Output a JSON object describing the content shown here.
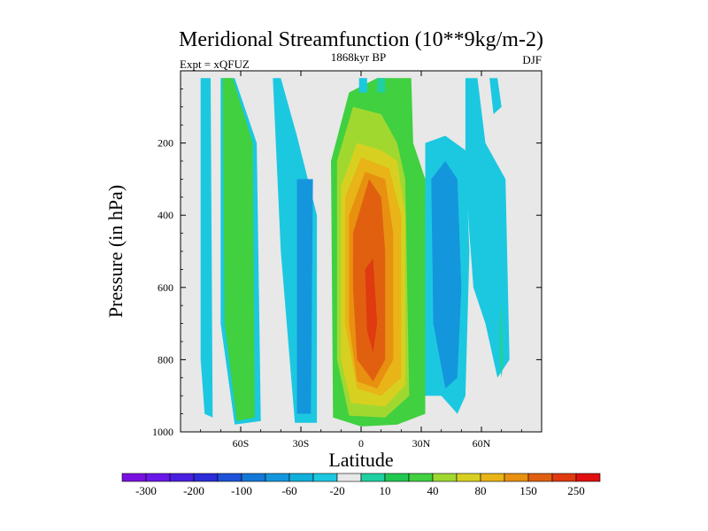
{
  "chart_data": {
    "type": "heatmap",
    "title": "Meridional Streamfunction (10**9kg/m-2)",
    "subtitle_left": "Expt = xQFUZ",
    "subtitle_center": "1868kyr BP",
    "subtitle_right": "DJF",
    "xlabel": "Latitude",
    "ylabel": "Pressure (in hPa)",
    "xlim": [
      -90,
      90
    ],
    "ylim": [
      1000,
      0
    ],
    "x_ticks": [
      {
        "value": -60,
        "label": "60S"
      },
      {
        "value": -30,
        "label": "30S"
      },
      {
        "value": 0,
        "label": "0"
      },
      {
        "value": 30,
        "label": "30N"
      },
      {
        "value": 60,
        "label": "60N"
      }
    ],
    "y_ticks": [
      {
        "value": 200,
        "label": "200"
      },
      {
        "value": 400,
        "label": "400"
      },
      {
        "value": 600,
        "label": "600"
      },
      {
        "value": 800,
        "label": "800"
      },
      {
        "value": 1000,
        "label": "1000"
      }
    ],
    "background_color": "#e8e8e8",
    "colorbar": {
      "colors": [
        "#7a10e0",
        "#6a18e8",
        "#4a20e0",
        "#2c2cd8",
        "#1e52d8",
        "#1478d8",
        "#1496dc",
        "#10b0dc",
        "#1cc8e0",
        "#e8e8e8",
        "#20d0a0",
        "#20c850",
        "#40d040",
        "#a0d830",
        "#d8d020",
        "#e8b418",
        "#e89010",
        "#e06010",
        "#e03a10",
        "#e01010"
      ],
      "labels": [
        "-300",
        "-200",
        "-100",
        "-60",
        "-20",
        "10",
        "40",
        "80",
        "150",
        "250"
      ]
    },
    "fields": [
      {
        "band": "A",
        "value_label": "-20",
        "color": "#1cc8e0",
        "outline": [
          [
            -80,
            20
          ],
          [
            -75,
            20
          ],
          [
            -74,
            960
          ],
          [
            -78,
            950
          ],
          [
            -80,
            800
          ]
        ]
      },
      {
        "band": "B",
        "value_label": "-20",
        "color": "#1cc8e0",
        "outline": [
          [
            -70,
            20
          ],
          [
            -63,
            20
          ],
          [
            -52,
            200
          ],
          [
            -50,
            970
          ],
          [
            -63,
            980
          ],
          [
            -70,
            700
          ]
        ]
      },
      {
        "band": "C",
        "value_label": "40",
        "color": "#40d040",
        "outline": [
          [
            -69,
            20
          ],
          [
            -64,
            20
          ],
          [
            -54,
            200
          ],
          [
            -53,
            960
          ],
          [
            -62,
            970
          ],
          [
            -68,
            700
          ]
        ]
      },
      {
        "band": "D",
        "value_label": "-20",
        "color": "#1cc8e0",
        "outline": [
          [
            -44,
            20
          ],
          [
            -40,
            20
          ],
          [
            -32,
            180
          ],
          [
            -22,
            400
          ],
          [
            -22,
            975
          ],
          [
            -33,
            975
          ],
          [
            -40,
            500
          ]
        ]
      },
      {
        "band": "E",
        "value_label": "-60",
        "color": "#1496dc",
        "outline": [
          [
            -32,
            300
          ],
          [
            -24,
            300
          ],
          [
            -25,
            950
          ],
          [
            -32,
            950
          ]
        ]
      },
      {
        "band": "F",
        "value_label": "-60",
        "color": "#1496dc",
        "outline": [
          [
            -28,
            400
          ],
          [
            -26,
            400
          ],
          [
            -26,
            650
          ],
          [
            -28,
            650
          ]
        ]
      },
      {
        "band": "G",
        "value_label": "10",
        "color": "#20d0a0",
        "outline": [
          [
            -14,
            250
          ],
          [
            -12,
            250
          ],
          [
            -11,
            800
          ],
          [
            -14,
            800
          ]
        ]
      },
      {
        "band": "H",
        "value_label": "40",
        "color": "#40d040",
        "outline": [
          [
            -15,
            250
          ],
          [
            -6,
            60
          ],
          [
            8,
            20
          ],
          [
            25,
            20
          ],
          [
            26,
            200
          ],
          [
            32,
            300
          ],
          [
            32,
            950
          ],
          [
            18,
            980
          ],
          [
            0,
            985
          ],
          [
            -14,
            960
          ]
        ]
      },
      {
        "band": "I",
        "value_label": "80",
        "color": "#a0d830",
        "outline": [
          [
            -12,
            250
          ],
          [
            -4,
            100
          ],
          [
            10,
            120
          ],
          [
            18,
            200
          ],
          [
            22,
            300
          ],
          [
            24,
            900
          ],
          [
            12,
            960
          ],
          [
            -6,
            955
          ],
          [
            -12,
            800
          ]
        ]
      },
      {
        "band": "J",
        "value_label": "150",
        "color": "#d8d020",
        "outline": [
          [
            -10,
            320
          ],
          [
            -2,
            200
          ],
          [
            10,
            220
          ],
          [
            18,
            250
          ],
          [
            22,
            400
          ],
          [
            22,
            870
          ],
          [
            12,
            930
          ],
          [
            -5,
            920
          ],
          [
            -10,
            800
          ]
        ]
      },
      {
        "band": "K",
        "value_label": "150",
        "color": "#e8b418",
        "outline": [
          [
            -8,
            350
          ],
          [
            0,
            240
          ],
          [
            14,
            270
          ],
          [
            20,
            400
          ],
          [
            20,
            850
          ],
          [
            10,
            900
          ],
          [
            -2,
            880
          ],
          [
            -8,
            700
          ]
        ]
      },
      {
        "band": "L",
        "value_label": "250",
        "color": "#e89010",
        "outline": [
          [
            -6,
            400
          ],
          [
            2,
            280
          ],
          [
            12,
            300
          ],
          [
            16,
            450
          ],
          [
            16,
            800
          ],
          [
            8,
            880
          ],
          [
            -2,
            860
          ],
          [
            -6,
            700
          ]
        ]
      },
      {
        "band": "M",
        "value_label": "250",
        "color": "#e06010",
        "outline": [
          [
            -4,
            450
          ],
          [
            4,
            300
          ],
          [
            10,
            350
          ],
          [
            12,
            500
          ],
          [
            12,
            800
          ],
          [
            6,
            860
          ],
          [
            -2,
            800
          ],
          [
            -4,
            600
          ]
        ]
      },
      {
        "band": "N",
        "value_label": "250",
        "color": "#e03a10",
        "outline": [
          [
            2,
            550
          ],
          [
            6,
            520
          ],
          [
            8,
            700
          ],
          [
            6,
            780
          ],
          [
            3,
            720
          ]
        ]
      },
      {
        "band": "O",
        "value_label": "-20",
        "color": "#1cc8e0",
        "outline": [
          [
            32,
            200
          ],
          [
            42,
            180
          ],
          [
            52,
            220
          ],
          [
            54,
            500
          ],
          [
            52,
            900
          ],
          [
            48,
            950
          ],
          [
            40,
            900
          ],
          [
            32,
            900
          ]
        ]
      },
      {
        "band": "P",
        "value_label": "-60",
        "color": "#1496dc",
        "outline": [
          [
            35,
            300
          ],
          [
            42,
            250
          ],
          [
            48,
            300
          ],
          [
            50,
            600
          ],
          [
            48,
            850
          ],
          [
            42,
            880
          ],
          [
            36,
            700
          ]
        ]
      },
      {
        "band": "Q",
        "value_label": "-20",
        "color": "#1cc8e0",
        "outline": [
          [
            52,
            20
          ],
          [
            58,
            20
          ],
          [
            62,
            200
          ],
          [
            72,
            300
          ],
          [
            74,
            800
          ],
          [
            68,
            850
          ],
          [
            62,
            700
          ],
          [
            56,
            600
          ],
          [
            52,
            300
          ]
        ]
      },
      {
        "band": "R",
        "value_label": "-20",
        "color": "#1cc8e0",
        "outline": [
          [
            64,
            20
          ],
          [
            68,
            20
          ],
          [
            70,
            100
          ],
          [
            66,
            120
          ]
        ]
      },
      {
        "band": "S",
        "value_label": "10",
        "color": "#20d0a0",
        "outline": [
          [
            69,
            700
          ],
          [
            70,
            640
          ],
          [
            71,
            800
          ],
          [
            70,
            850
          ],
          [
            69,
            800
          ]
        ]
      },
      {
        "band": "T",
        "value_label": "-20",
        "color": "#1cc8e0",
        "outline": [
          [
            -1,
            20
          ],
          [
            3,
            20
          ],
          [
            3,
            60
          ],
          [
            -1,
            60
          ]
        ]
      },
      {
        "band": "U",
        "value_label": "10",
        "color": "#20d0a0",
        "outline": [
          [
            8,
            20
          ],
          [
            12,
            20
          ],
          [
            12,
            60
          ],
          [
            8,
            60
          ]
        ]
      }
    ]
  }
}
